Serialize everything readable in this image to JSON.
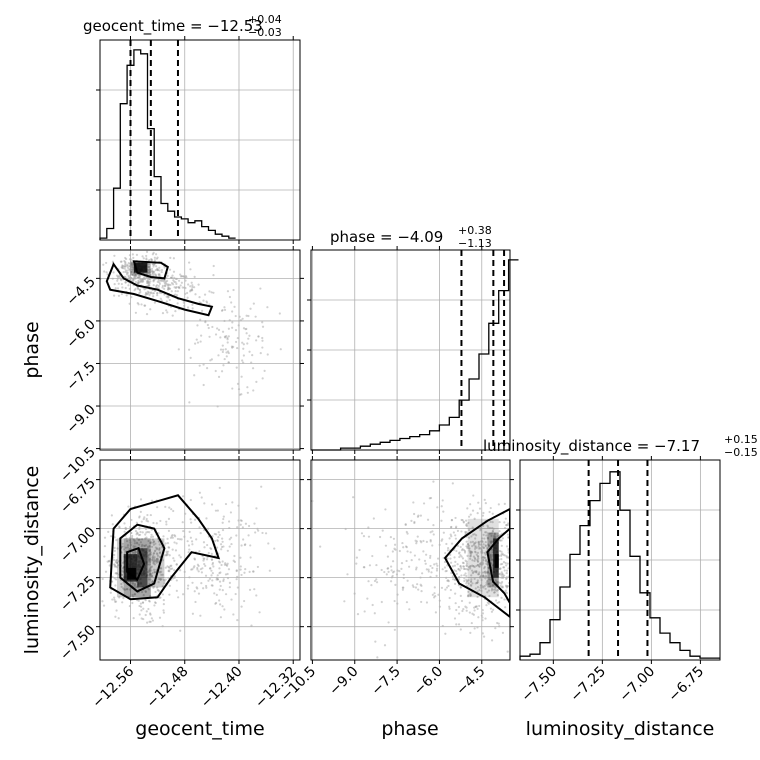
{
  "params": [
    "geocent_time",
    "phase",
    "luminosity_distance"
  ],
  "titles": [
    {
      "text": "geocent_time = −12.53",
      "sup": "+0.04",
      "sub": "−0.03"
    },
    {
      "text": "phase = −4.09",
      "sup": "+0.38",
      "sub": "−1.13"
    },
    {
      "text": "luminosity_distance = −7.17",
      "sup": "+0.15",
      "sub": "−0.15"
    }
  ],
  "axis_labels": {
    "x": [
      "geocent_time",
      "phase",
      "luminosity_distance"
    ],
    "y": [
      "phase",
      "luminosity_distance"
    ]
  },
  "chart_data": [
    {
      "type": "corner",
      "title": "",
      "parameters": [
        "geocent_time",
        "phase",
        "luminosity_distance"
      ],
      "ranges": {
        "geocent_time": [
          -12.605,
          -12.31
        ],
        "phase": [
          -10.55,
          -3.5
        ],
        "luminosity_distance": [
          -7.67,
          -6.65
        ]
      },
      "ticks": {
        "geocent_time": [
          -12.56,
          -12.48,
          -12.4,
          -12.32
        ],
        "phase": [
          -10.5,
          -9.0,
          -7.5,
          -6.0,
          -4.5
        ],
        "luminosity_distance": [
          -7.5,
          -7.25,
          -7.0,
          -6.75
        ]
      },
      "tick_labels": {
        "geocent_time": [
          "−12.56",
          "−12.48",
          "−12.40",
          "−12.32"
        ],
        "phase": [
          "−10.5",
          "−9.0",
          "−7.5",
          "−6.0",
          "−4.5"
        ],
        "luminosity_distance": [
          "−7.50",
          "−7.25",
          "−7.00",
          "−6.75"
        ]
      },
      "quantiles": {
        "geocent_time": [
          -12.56,
          -12.53,
          -12.49
        ],
        "phase": [
          -5.22,
          -4.09,
          -3.71
        ],
        "luminosity_distance": [
          -7.32,
          -7.17,
          -7.02
        ]
      },
      "histograms": {
        "geocent_time": {
          "start": -12.605,
          "step": 0.01,
          "counts": [
            0.01,
            0.06,
            0.27,
            0.71,
            0.91,
            0.99,
            0.97,
            0.58,
            0.33,
            0.19,
            0.15,
            0.12,
            0.11,
            0.09,
            0.1,
            0.07,
            0.05,
            0.03,
            0.02,
            0.01
          ]
        },
        "phase": {
          "start": -10.55,
          "step": 0.35,
          "counts": [
            0.0,
            0.0,
            0.0,
            0.01,
            0.01,
            0.02,
            0.03,
            0.04,
            0.05,
            0.06,
            0.07,
            0.08,
            0.1,
            0.13,
            0.17,
            0.26,
            0.37,
            0.5,
            0.66,
            0.83,
            0.99
          ]
        },
        "luminosity_distance": {
          "start": -7.67,
          "step": 0.051,
          "counts": [
            0.02,
            0.03,
            0.09,
            0.21,
            0.38,
            0.55,
            0.7,
            0.83,
            0.92,
            0.98,
            0.78,
            0.54,
            0.35,
            0.22,
            0.14,
            0.09,
            0.05,
            0.02,
            0.01,
            0.01
          ]
        }
      },
      "grid": true,
      "legend": "none"
    }
  ]
}
